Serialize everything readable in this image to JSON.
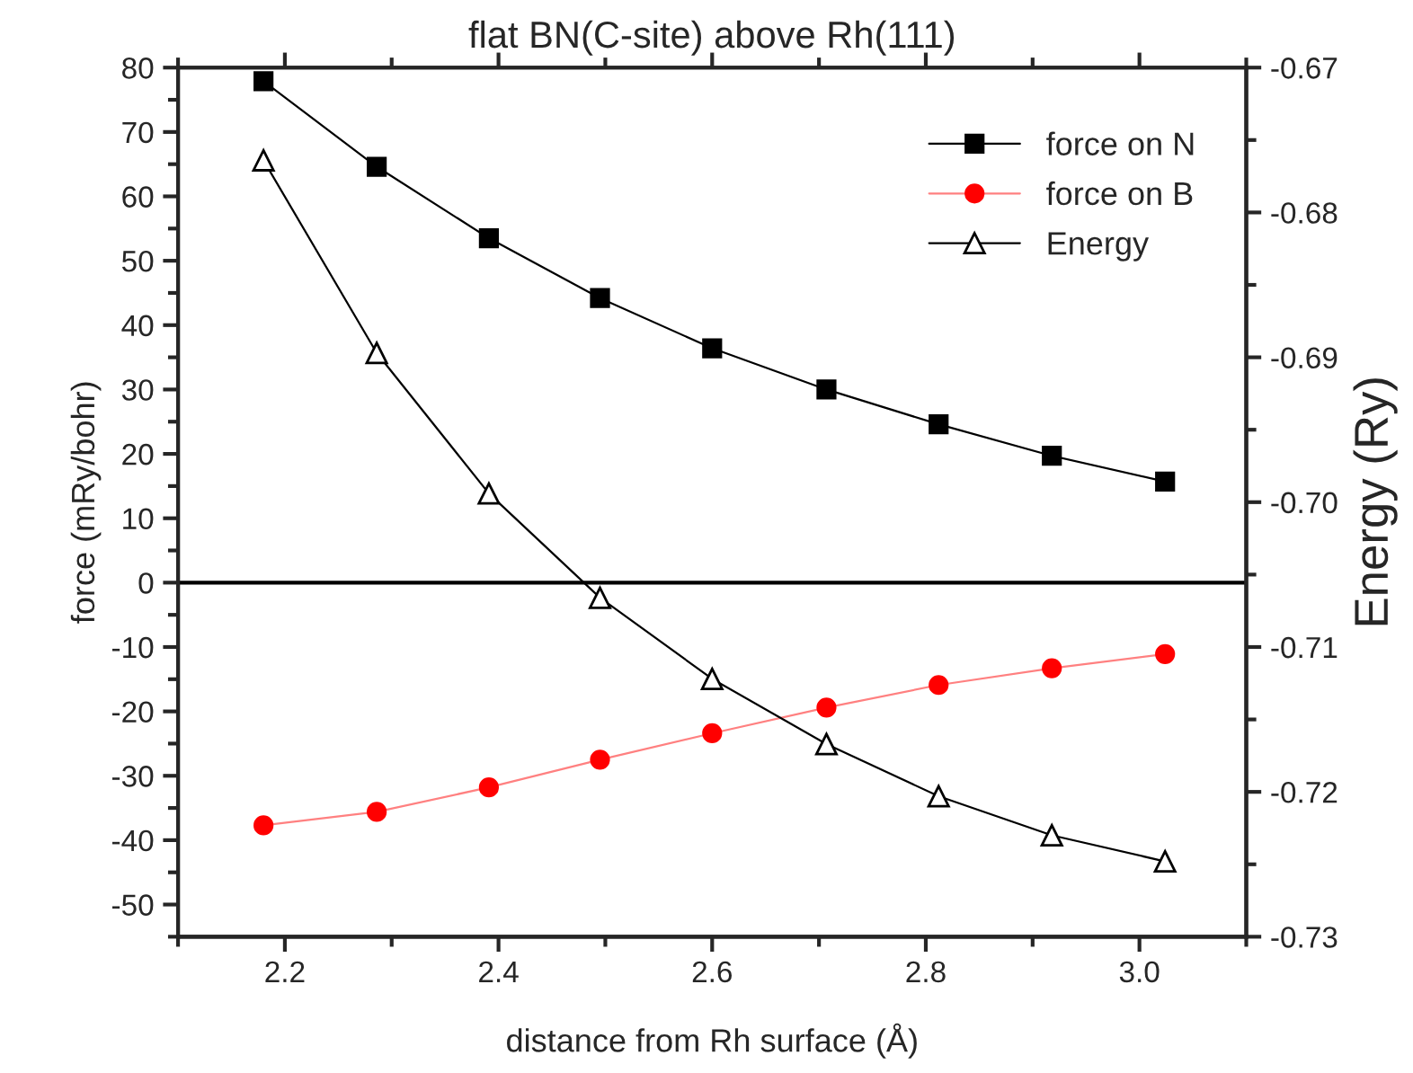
{
  "chart_data": {
    "type": "line",
    "title": "flat BN(C-site) above Rh(111)",
    "xlabel": "distance from Rh surface (Å)",
    "ylabel": "force (mRy/bohr)",
    "y2label": "Energy (Ry)",
    "x": [
      2.18,
      2.286,
      2.391,
      2.495,
      2.6,
      2.707,
      2.812,
      2.918,
      3.024
    ],
    "series": [
      {
        "name": "force on N",
        "color": "#000000",
        "marker": "square",
        "values": [
          77.9,
          64.6,
          53.5,
          44.2,
          36.4,
          30.0,
          24.6,
          19.7,
          15.7
        ]
      },
      {
        "name": "force on B",
        "color": "#ff0000",
        "marker": "circle",
        "values": [
          -37.7,
          -35.6,
          -31.8,
          -27.5,
          -23.4,
          -19.4,
          -15.9,
          -13.3,
          -11.1
        ]
      },
      {
        "name": "Energy",
        "color": "#000000",
        "marker": "triangle",
        "axis": "y2",
        "values": [
          -0.6764,
          -0.6897,
          -0.6994,
          -0.7066,
          -0.7122,
          -0.7167,
          -0.7203,
          -0.723,
          -0.7248
        ]
      }
    ],
    "xlim": [
      2.1,
      3.1
    ],
    "xticks": [
      2.2,
      2.4,
      2.6,
      2.8,
      {
        "value": 3.0,
        "label": "3.0"
      }
    ],
    "ylim": [
      -55,
      80
    ],
    "yticks": [
      -50,
      -40,
      -30,
      -20,
      -10,
      0,
      10,
      20,
      30,
      40,
      50,
      60,
      70,
      80
    ],
    "y2lim": [
      -0.73,
      -0.67
    ],
    "y2ticks": [
      {
        "value": -0.73,
        "label": "-0.73"
      },
      {
        "value": -0.72,
        "label": "-0.72"
      },
      {
        "value": -0.71,
        "label": "-0.71"
      },
      {
        "value": -0.7,
        "label": "-0.70"
      },
      {
        "value": -0.69,
        "label": "-0.69"
      },
      {
        "value": -0.68,
        "label": "-0.68"
      },
      {
        "value": -0.67,
        "label": "-0.67"
      }
    ],
    "ref_lines": [
      {
        "axis": "y",
        "value": 0,
        "color": "#000000"
      }
    ],
    "legend": "top right",
    "grid": false,
    "line_style": "solid"
  }
}
